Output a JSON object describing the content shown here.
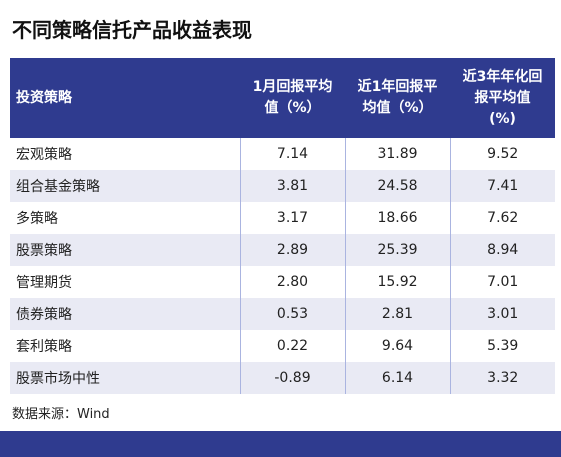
{
  "title": "不同策略信托产品收益表现",
  "table": {
    "header": [
      [
        "投资策略"
      ],
      [
        "1月回报平均",
        "值（%）"
      ],
      [
        "近1年回报平",
        "均值（%）"
      ],
      [
        "近3年年化回",
        "报平均值",
        "(%)"
      ]
    ],
    "rows": [
      [
        "宏观策略",
        "7.14",
        "31.89",
        "9.52"
      ],
      [
        "组合基金策略",
        "3.81",
        "24.58",
        "7.41"
      ],
      [
        "多策略",
        "3.17",
        "18.66",
        "7.62"
      ],
      [
        "股票策略",
        "2.89",
        "25.39",
        "8.94"
      ],
      [
        "管理期货",
        "2.80",
        "15.92",
        "7.01"
      ],
      [
        "债券策略",
        "0.53",
        "2.81",
        "3.01"
      ],
      [
        "套利策略",
        "0.22",
        "9.64",
        "5.39"
      ],
      [
        "股票市场中性",
        "-0.89",
        "6.14",
        "3.32"
      ]
    ]
  },
  "source": "数据来源：Wind"
}
